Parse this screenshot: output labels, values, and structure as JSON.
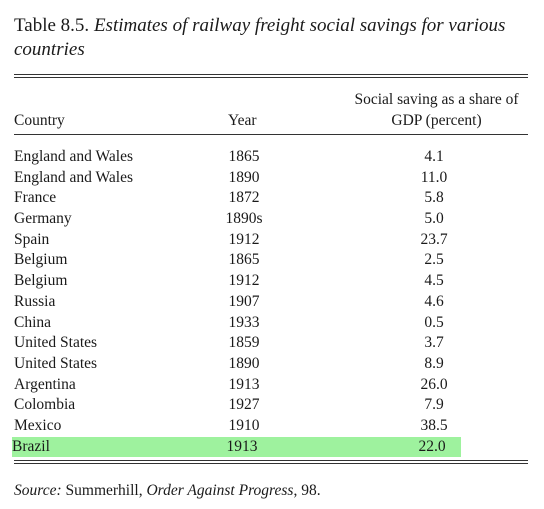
{
  "caption": {
    "number": "Table 8.5.",
    "title": "Estimates of railway freight social savings for various countries"
  },
  "headers": {
    "country": "Country",
    "year": "Year",
    "share": "Social saving as a share of GDP (percent)"
  },
  "rows": [
    {
      "country": "England and Wales",
      "year": "1865",
      "share": "4.1"
    },
    {
      "country": "England and Wales",
      "year": "1890",
      "share": "11.0"
    },
    {
      "country": "France",
      "year": "1872",
      "share": "5.8"
    },
    {
      "country": "Germany",
      "year": "1890s",
      "share": "5.0"
    },
    {
      "country": "Spain",
      "year": "1912",
      "share": "23.7"
    },
    {
      "country": "Belgium",
      "year": "1865",
      "share": "2.5"
    },
    {
      "country": "Belgium",
      "year": "1912",
      "share": "4.5"
    },
    {
      "country": "Russia",
      "year": "1907",
      "share": "4.6"
    },
    {
      "country": "China",
      "year": "1933",
      "share": "0.5"
    },
    {
      "country": "United States",
      "year": "1859",
      "share": "3.7"
    },
    {
      "country": "United States",
      "year": "1890",
      "share": "8.9"
    },
    {
      "country": "Argentina",
      "year": "1913",
      "share": "26.0"
    },
    {
      "country": "Colombia",
      "year": "1927",
      "share": "7.9"
    },
    {
      "country": "Mexico",
      "year": "1910",
      "share": "38.5"
    },
    {
      "country": "Brazil",
      "year": "1913",
      "share": "22.0",
      "highlighted": true
    }
  ],
  "highlight_color": "#9ef29e",
  "source": {
    "label": "Source:",
    "author": "Summerhill,",
    "work": "Order Against Progress",
    "page": ", 98."
  }
}
